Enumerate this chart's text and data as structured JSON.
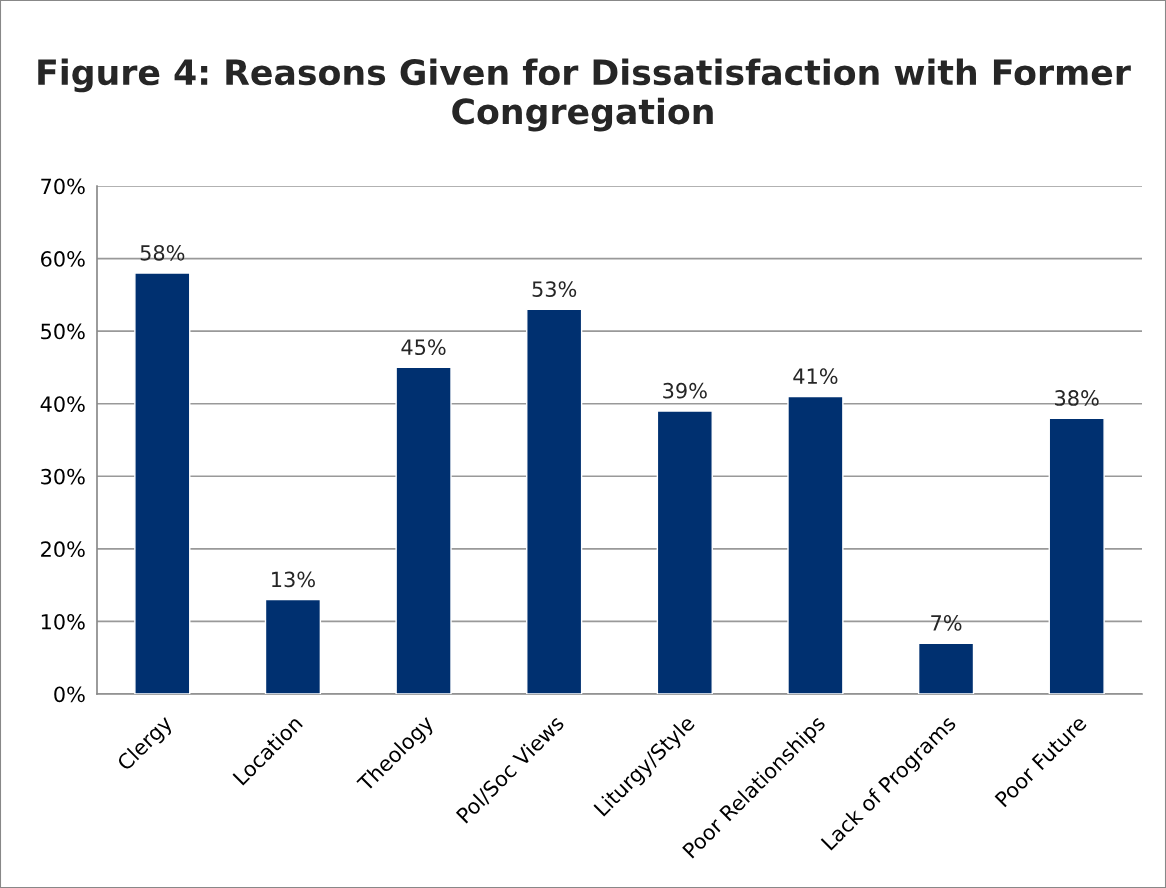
{
  "chart_data": {
    "type": "bar",
    "title": "Figure 4: Reasons Given for Dissatisfaction with Former Congregation",
    "categories": [
      "Clergy",
      "Location",
      "Theology",
      "Pol/Soc Views",
      "Liturgy/Style",
      "Poor Relationships",
      "Lack of Programs",
      "Poor Future"
    ],
    "values": [
      58,
      13,
      45,
      53,
      39,
      41,
      7,
      38
    ],
    "value_labels": [
      "58%",
      "13%",
      "45%",
      "53%",
      "39%",
      "41%",
      "7%",
      "38%"
    ],
    "color": "#003070",
    "ylim": [
      0,
      70
    ],
    "yticks": [
      {
        "value": 0,
        "label": "0%"
      },
      {
        "value": 10,
        "label": "10%"
      },
      {
        "value": 20,
        "label": "20%"
      },
      {
        "value": 30,
        "label": "30%"
      },
      {
        "value": 40,
        "label": "40%"
      },
      {
        "value": 50,
        "label": "50%"
      },
      {
        "value": 60,
        "label": "60%"
      },
      {
        "value": 70,
        "label": "70%"
      }
    ],
    "grid": "y",
    "legend": false
  }
}
